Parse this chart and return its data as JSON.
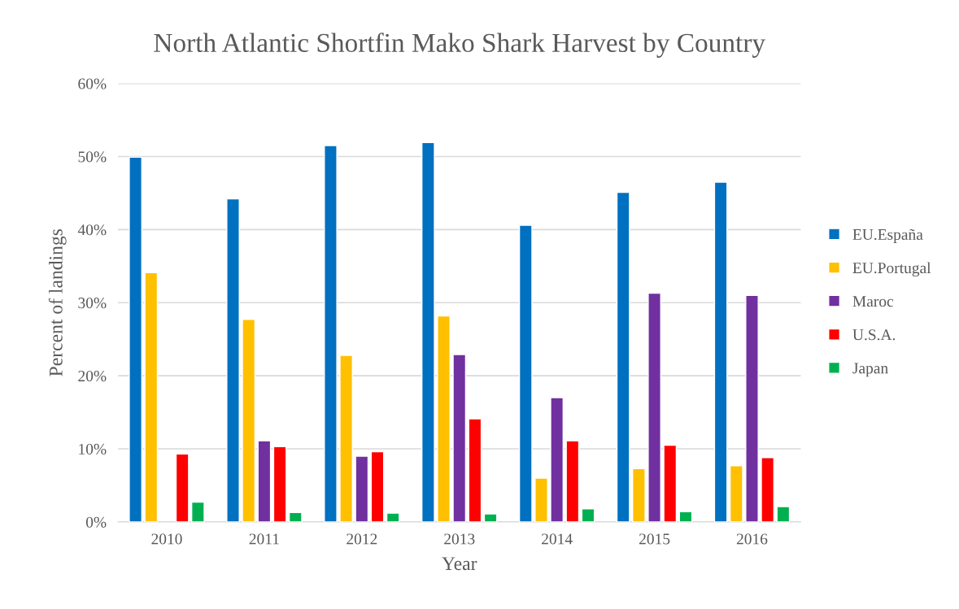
{
  "chart_data": {
    "type": "bar",
    "title": "North Atlantic Shortfin Mako Shark Harvest by Country",
    "xlabel": "Year",
    "ylabel": "Percent of landings",
    "categories": [
      "2010",
      "2011",
      "2012",
      "2013",
      "2014",
      "2015",
      "2016"
    ],
    "series": [
      {
        "name": "EU.España",
        "color": "#0070c0",
        "values": [
          49.9,
          44.2,
          51.5,
          51.9,
          40.6,
          45.1,
          46.5
        ]
      },
      {
        "name": "EU.Portugal",
        "color": "#ffc000",
        "values": [
          34.1,
          27.7,
          22.8,
          28.2,
          6.0,
          7.3,
          7.7
        ]
      },
      {
        "name": "Maroc",
        "color": "#7030a0",
        "values": [
          null,
          11.1,
          9.0,
          22.9,
          17.0,
          31.3,
          31.0
        ]
      },
      {
        "name": "U.S.A.",
        "color": "#ff0000",
        "values": [
          9.3,
          10.3,
          9.6,
          14.1,
          11.1,
          10.5,
          8.8
        ]
      },
      {
        "name": "Japan",
        "color": "#00b050",
        "values": [
          2.7,
          1.3,
          1.2,
          1.1,
          1.8,
          1.4,
          2.1
        ]
      }
    ],
    "ylim": [
      0,
      60
    ],
    "yticks": [
      {
        "value": 0,
        "label": "0%"
      },
      {
        "value": 10,
        "label": "10%"
      },
      {
        "value": 20,
        "label": "20%"
      },
      {
        "value": 30,
        "label": "30%"
      },
      {
        "value": 40,
        "label": "40%"
      },
      {
        "value": 50,
        "label": "50%"
      },
      {
        "value": 60,
        "label": "60%"
      }
    ],
    "grid": "y",
    "legend": "right"
  }
}
